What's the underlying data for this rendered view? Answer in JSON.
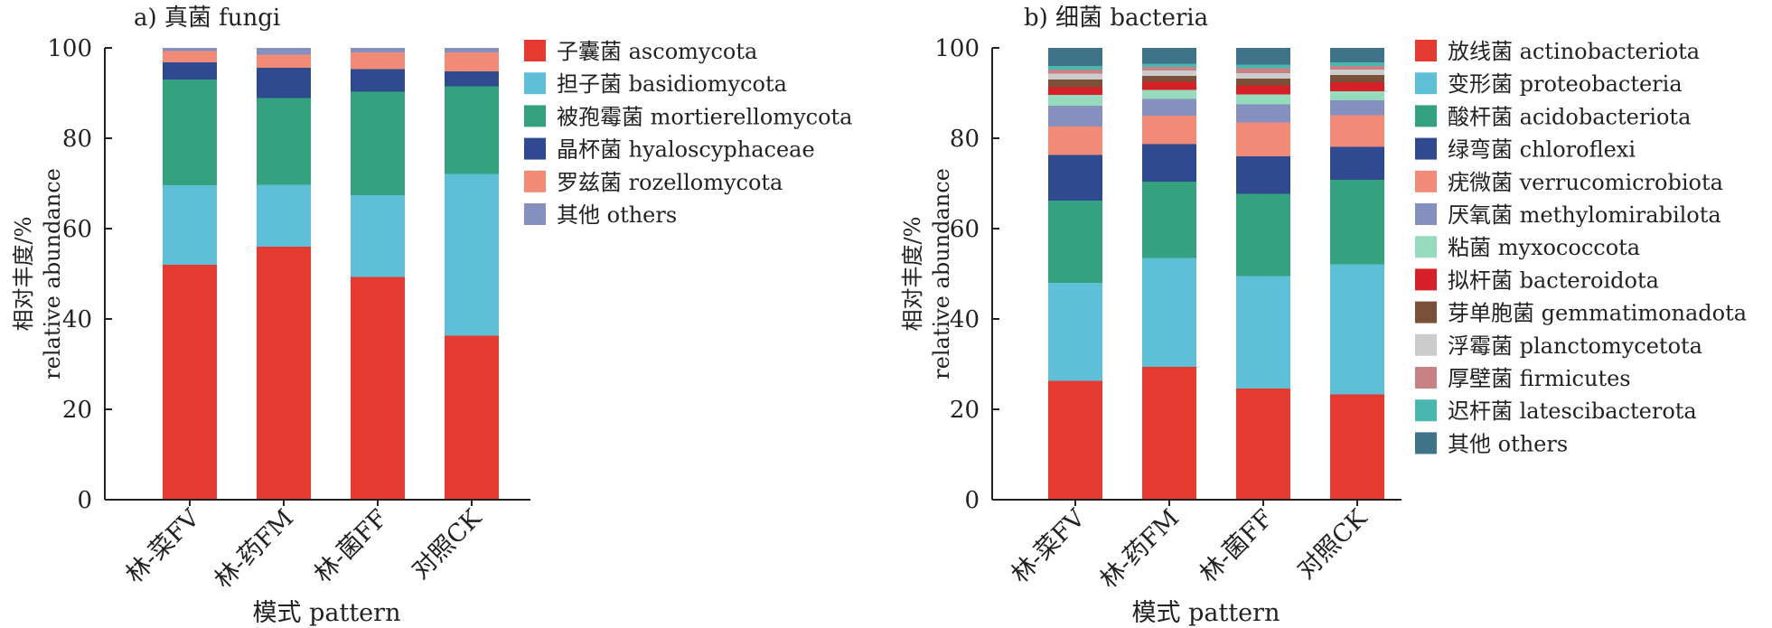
{
  "chart_data": [
    {
      "type": "bar",
      "stacked": true,
      "title": "a) 真菌 fungi",
      "xlabel": "模式 pattern",
      "ylabel": "相对丰度/%",
      "ylabel_en": "relative abundance",
      "ylim": [
        0,
        100
      ],
      "yticks": [
        "0",
        "20",
        "40",
        "60",
        "80",
        "100"
      ],
      "categories": [
        "林-菜FV",
        "林-药FM",
        "林-菌FF",
        "对照CK"
      ],
      "legend_position": "right",
      "series": [
        {
          "name": "子囊菌 ascomycota",
          "color": "#e53a2f",
          "values": [
            52,
            56,
            49.3,
            36.3
          ]
        },
        {
          "name": "担子菌 basidiomycota",
          "color": "#5fbfd6",
          "values": [
            17.6,
            13.7,
            18.1,
            35.8
          ]
        },
        {
          "name": "被孢霉菌 mortierellomycota",
          "color": "#35a27f",
          "values": [
            23.4,
            19.2,
            22.9,
            19.4
          ]
        },
        {
          "name": "晶杯菌 hyaloscyphaceae",
          "color": "#2f4a8e",
          "values": [
            3.8,
            6.7,
            5,
            3.3
          ]
        },
        {
          "name": "罗兹菌 rozellomycota",
          "color": "#f28a78",
          "values": [
            2.5,
            2.9,
            3.7,
            4.2
          ]
        },
        {
          "name": "其他 others",
          "color": "#8590bf",
          "values": [
            0.7,
            1.5,
            1,
            1
          ]
        }
      ]
    },
    {
      "type": "bar",
      "stacked": true,
      "title": "b) 细菌 bacteria",
      "xlabel": "模式 pattern",
      "ylabel": "相对丰度/%",
      "ylabel_en": "relative abundance",
      "ylim": [
        0,
        100
      ],
      "yticks": [
        "0",
        "20",
        "40",
        "60",
        "80",
        "100"
      ],
      "categories": [
        "林-菜FV",
        "林-药FM",
        "林-菌FF",
        "对照CK"
      ],
      "legend_position": "right",
      "series": [
        {
          "name": "放线菌 actinobacteriota",
          "color": "#e53a2f",
          "values": [
            26.3,
            29.4,
            24.6,
            23.3
          ]
        },
        {
          "name": "变形菌 proteobacteria",
          "color": "#5fbfd6",
          "values": [
            21.7,
            24.1,
            24.9,
            28.8
          ]
        },
        {
          "name": "酸杆菌 acidobacteriota",
          "color": "#35a27f",
          "values": [
            18.2,
            16.9,
            18.2,
            18.7
          ]
        },
        {
          "name": "绿弯菌 chloroflexi",
          "color": "#2f4a8e",
          "values": [
            10.1,
            8.3,
            8.3,
            7.3
          ]
        },
        {
          "name": "疣微菌 verrucomicrobiota",
          "color": "#f28a78",
          "values": [
            6.3,
            6.3,
            7.5,
            7
          ]
        },
        {
          "name": "厌氧菌 methylomirabilota",
          "color": "#8590bf",
          "values": [
            4.6,
            3.7,
            4,
            3.3
          ]
        },
        {
          "name": "粘菌 myxococcota",
          "color": "#96dbbe",
          "values": [
            2.4,
            2,
            2.2,
            2
          ]
        },
        {
          "name": "拟杆菌 bacteroidota",
          "color": "#d62027",
          "values": [
            1.7,
            1.8,
            2,
            2
          ]
        },
        {
          "name": "芽单胞菌 gemmatimonadota",
          "color": "#7a5038",
          "values": [
            1.7,
            1.3,
            1.5,
            1.6
          ]
        },
        {
          "name": "浮霉菌 planctomycetota",
          "color": "#cccccc",
          "values": [
            1.3,
            1.2,
            1.2,
            1.2
          ]
        },
        {
          "name": "厚壁菌 firmicutes",
          "color": "#c98283",
          "values": [
            0.9,
            0.8,
            1.1,
            0.8
          ]
        },
        {
          "name": "迟杆菌 latescibacterota",
          "color": "#4ab6b0",
          "values": [
            0.8,
            0.7,
            0.8,
            0.8
          ]
        },
        {
          "name": "其他 others",
          "color": "#3f7389",
          "values": [
            4,
            3.5,
            3.7,
            3.2
          ]
        }
      ]
    }
  ]
}
